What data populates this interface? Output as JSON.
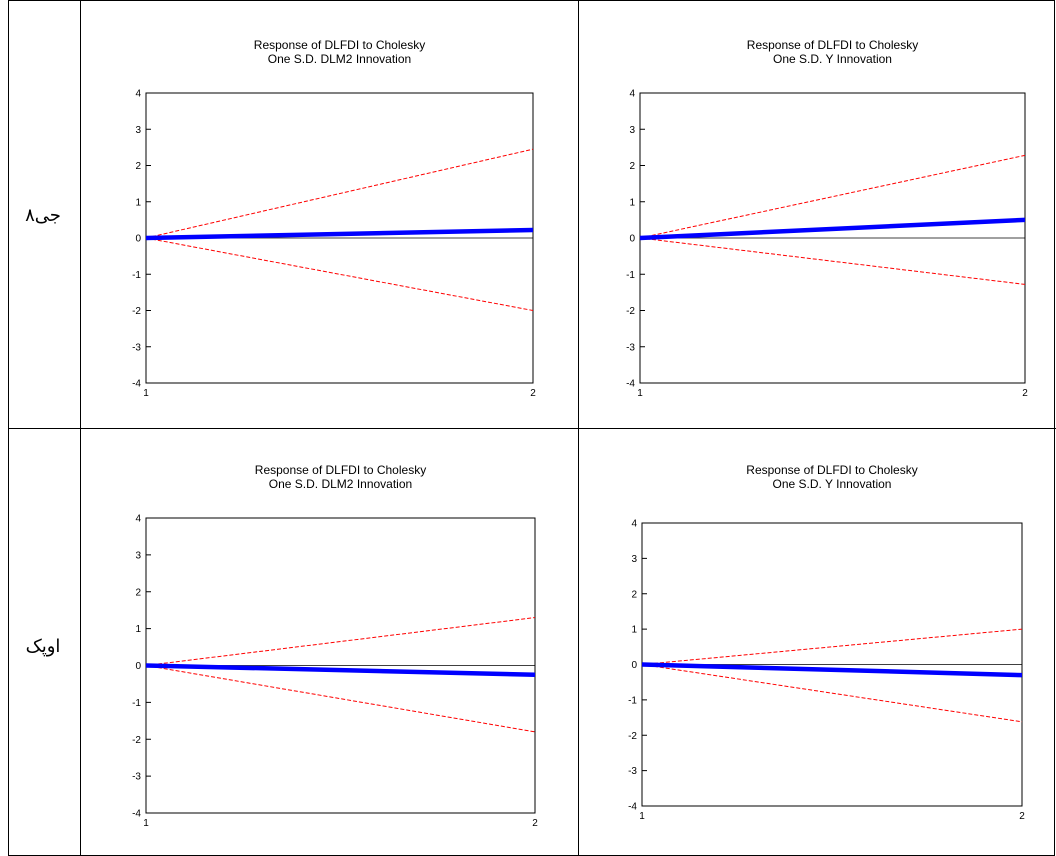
{
  "rows": [
    {
      "label": "جی۸"
    },
    {
      "label": "اوپک"
    }
  ],
  "chart_data": [
    {
      "type": "line",
      "title": "Response of DLFDI to Cholesky",
      "subtitle": "One S.D. DLM2 Innovation",
      "x": [
        "1",
        "2"
      ],
      "ylim": [
        -4,
        4
      ],
      "yticks": [
        "4",
        "3",
        "2",
        "1",
        "0",
        "-1",
        "-2",
        "-3",
        "-4"
      ],
      "series": [
        {
          "role": "response",
          "values": [
            0,
            0.22
          ],
          "color": "#0000ff"
        },
        {
          "role": "upper",
          "values": [
            0,
            2.45
          ],
          "color": "#ff0000"
        },
        {
          "role": "lower",
          "values": [
            0,
            -2.0
          ],
          "color": "#ff0000"
        }
      ]
    },
    {
      "type": "line",
      "title": "Response of DLFDI to Cholesky",
      "subtitle": "One S.D. Y Innovation",
      "x": [
        "1",
        "2"
      ],
      "ylim": [
        -4,
        4
      ],
      "yticks": [
        "4",
        "3",
        "2",
        "1",
        "0",
        "-1",
        "-2",
        "-3",
        "-4"
      ],
      "series": [
        {
          "role": "response",
          "values": [
            0,
            0.5
          ],
          "color": "#0000ff"
        },
        {
          "role": "upper",
          "values": [
            0,
            2.28
          ],
          "color": "#ff0000"
        },
        {
          "role": "lower",
          "values": [
            0,
            -1.28
          ],
          "color": "#ff0000"
        }
      ]
    },
    {
      "type": "line",
      "title": "Response of DLFDI to Cholesky",
      "subtitle": "One S.D. DLM2 Innovation",
      "x": [
        "1",
        "2"
      ],
      "ylim": [
        -4,
        4
      ],
      "yticks": [
        "4",
        "3",
        "2",
        "1",
        "0",
        "-1",
        "-2",
        "-3",
        "-4"
      ],
      "series": [
        {
          "role": "response",
          "values": [
            0,
            -0.25
          ],
          "color": "#0000ff"
        },
        {
          "role": "upper",
          "values": [
            0,
            1.3
          ],
          "color": "#ff0000"
        },
        {
          "role": "lower",
          "values": [
            0,
            -1.8
          ],
          "color": "#ff0000"
        }
      ]
    },
    {
      "type": "line",
      "title": "Response of DLFDI to Cholesky",
      "subtitle": "One S.D. Y Innovation",
      "x": [
        "1",
        "2"
      ],
      "ylim": [
        -4,
        4
      ],
      "yticks": [
        "4",
        "3",
        "2",
        "1",
        "0",
        "-1",
        "-2",
        "-3",
        "-4"
      ],
      "series": [
        {
          "role": "response",
          "values": [
            0,
            -0.3
          ],
          "color": "#0000ff"
        },
        {
          "role": "upper",
          "values": [
            0,
            1.0
          ],
          "color": "#ff0000"
        },
        {
          "role": "lower",
          "values": [
            0,
            -1.62
          ],
          "color": "#ff0000"
        }
      ]
    }
  ]
}
